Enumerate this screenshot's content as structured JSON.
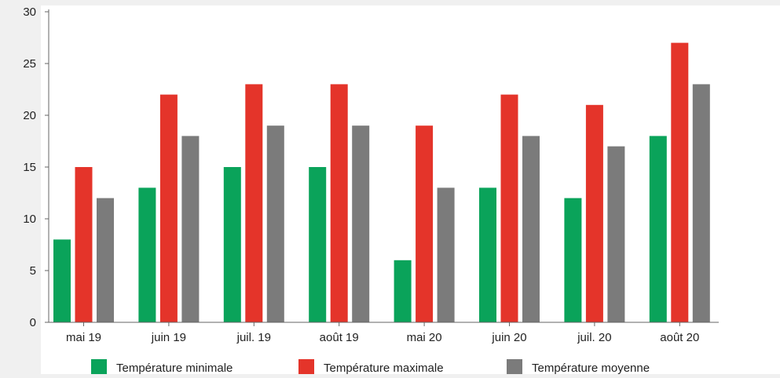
{
  "colors": {
    "page_background": "#f0f0f0",
    "plot_background": "#ffffff",
    "axis": "#666666"
  },
  "chart_data": {
    "type": "bar",
    "title": "",
    "xlabel": "",
    "ylabel": "",
    "ylim": [
      0,
      30
    ],
    "yticks": [
      0,
      5,
      10,
      15,
      20,
      25,
      30
    ],
    "grid": false,
    "legend_position": "bottom",
    "categories": [
      "mai 19",
      "juin 19",
      "juil. 19",
      "août 19",
      "mai 20",
      "juin 20",
      "juil. 20",
      "août 20"
    ],
    "series": [
      {
        "name": "Température minimale",
        "color": "#0aa35a",
        "values": [
          8,
          13,
          15,
          15,
          6,
          13,
          12,
          18
        ]
      },
      {
        "name": "Température maximale",
        "color": "#e4342a",
        "values": [
          15,
          22,
          23,
          23,
          19,
          22,
          21,
          27
        ]
      },
      {
        "name": "Température moyenne",
        "color": "#7b7b7b",
        "values": [
          12,
          18,
          19,
          19,
          13,
          18,
          17,
          23
        ]
      }
    ]
  }
}
